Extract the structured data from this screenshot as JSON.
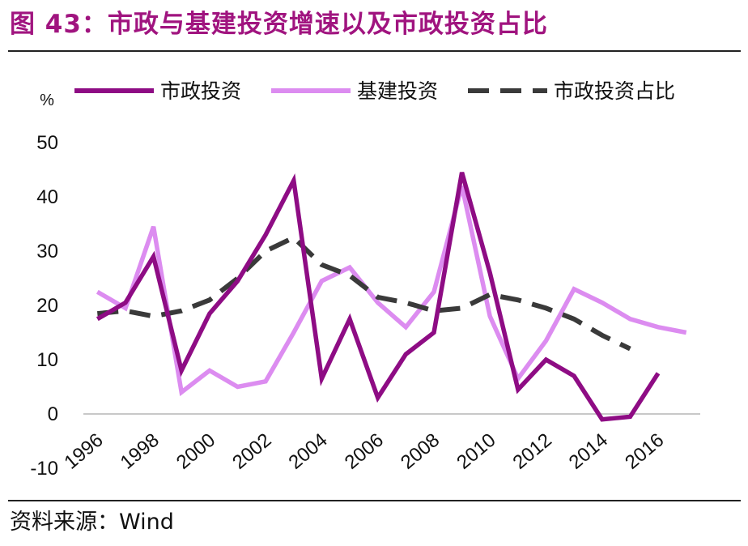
{
  "figure": {
    "title": "图 43：市政与基建投资增速以及市政投资占比",
    "source": "资料来源：Wind"
  },
  "colors": {
    "title": "#a0147f",
    "municipal": "#8e0c84",
    "infrastructure": "#dc8cf0",
    "share": "#3a3a3a"
  },
  "chart_data": {
    "type": "line",
    "yunit": "%",
    "ylim": [
      -10,
      50
    ],
    "yticks": [
      "50",
      "40",
      "30",
      "20",
      "10",
      "0",
      "-10"
    ],
    "xticks": [
      "1996",
      "1998",
      "2000",
      "2002",
      "2004",
      "2006",
      "2008",
      "2010",
      "2012",
      "2014",
      "2016"
    ],
    "x": [
      1996,
      1997,
      1998,
      1999,
      2000,
      2001,
      2002,
      2003,
      2004,
      2005,
      2006,
      2007,
      2008,
      2009,
      2010,
      2011,
      2012,
      2013,
      2014,
      2015,
      2016,
      2017
    ],
    "legend_position": "top",
    "grid": false,
    "series": [
      {
        "name": "市政投资",
        "style": "solid",
        "values": [
          17.5,
          20.5,
          29,
          8,
          18.5,
          24.5,
          33,
          43,
          6.5,
          17.5,
          3,
          11,
          15,
          44.5,
          26,
          4.5,
          10,
          7,
          -1,
          -0.5,
          7.5,
          null
        ]
      },
      {
        "name": "基建投资",
        "style": "solid",
        "values": [
          22.5,
          19.5,
          34.5,
          4,
          8,
          5,
          6,
          15,
          24.5,
          27,
          20.5,
          16,
          22.5,
          42,
          18,
          6.5,
          13.5,
          23,
          20.5,
          17.5,
          16,
          15
        ]
      },
      {
        "name": "市政投资占比",
        "style": "dashed",
        "values": [
          18.5,
          19,
          18,
          19,
          21,
          25,
          30,
          32.5,
          27.5,
          25.5,
          21.5,
          20.5,
          19,
          19.5,
          22,
          21,
          19.5,
          17.5,
          14.5,
          12,
          null,
          null
        ]
      }
    ]
  }
}
